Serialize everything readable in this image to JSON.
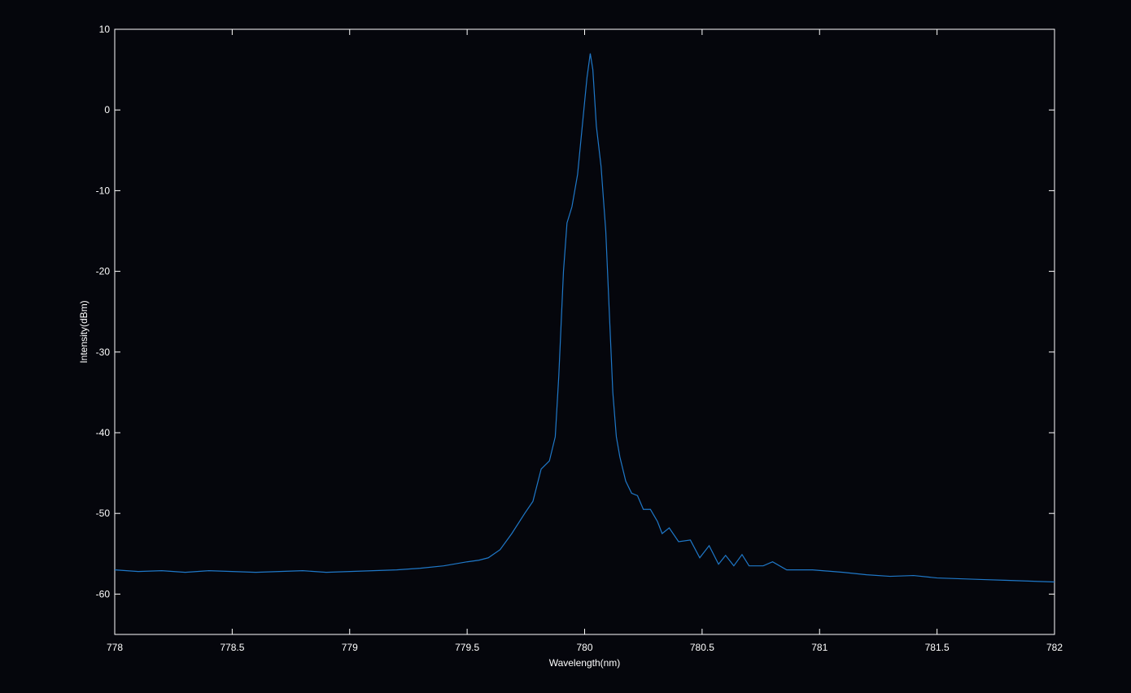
{
  "chart_data": {
    "type": "line",
    "x_label": "Wavelength(nm)",
    "y_label": "Intensity(dBm)",
    "color": "#1f78c8",
    "x": [
      778,
      778.1,
      778.2,
      778.3,
      778.4,
      778.5,
      778.6,
      778.7,
      778.8,
      778.9,
      779,
      779.1,
      779.2,
      779.3,
      779.4,
      779.5,
      779.55,
      779.59,
      779.64,
      779.69,
      779.745,
      779.78,
      779.815,
      779.85,
      779.875,
      779.89,
      779.91,
      779.925,
      779.946,
      779.97,
      779.99,
      780.01,
      780.024,
      780.035,
      780.05,
      780.07,
      780.09,
      780.105,
      780.12,
      780.135,
      780.15,
      780.175,
      780.2,
      780.225,
      780.25,
      780.28,
      780.31,
      780.33,
      780.36,
      780.4,
      780.45,
      780.49,
      780.53,
      780.57,
      780.6,
      780.635,
      780.67,
      780.7,
      780.76,
      780.8,
      780.86,
      780.97,
      781.1,
      781.2,
      781.3,
      781.4,
      781.5,
      781.6,
      781.7,
      781.8,
      781.9,
      782
    ],
    "values": [
      -57.0,
      -57.2,
      -57.1,
      -57.3,
      -57.1,
      -57.2,
      -57.3,
      -57.2,
      -57.1,
      -57.3,
      -57.2,
      -57.1,
      -57.0,
      -56.8,
      -56.5,
      -56.0,
      -55.8,
      -55.5,
      -54.5,
      -52.5,
      -50.0,
      -48.5,
      -44.5,
      -43.5,
      -40.5,
      -33.0,
      -20.0,
      -14.0,
      -12.0,
      -8.0,
      -2.0,
      4.0,
      7.0,
      5.0,
      -2.0,
      -7.0,
      -15.0,
      -25.0,
      -35.0,
      -40.5,
      -43.0,
      -46.0,
      -47.5,
      -47.8,
      -49.5,
      -49.5,
      -51.0,
      -52.5,
      -51.8,
      -53.5,
      -53.3,
      -55.5,
      -54.0,
      -56.3,
      -55.2,
      -56.5,
      -55.1,
      -56.5,
      -56.5,
      -56.0,
      -57.0,
      -57.0,
      -57.3,
      -57.6,
      -57.8,
      -57.7,
      -58.0,
      -58.1,
      -58.2,
      -58.3,
      -58.4,
      -58.5
    ],
    "xlim": [
      778,
      782
    ],
    "ylim": [
      -65,
      10
    ],
    "xticks": [
      778,
      778.5,
      779,
      779.5,
      780,
      780.5,
      781,
      781.5,
      782
    ],
    "yticks": [
      -60,
      -50,
      -40,
      -30,
      -20,
      -10,
      0,
      10
    ]
  }
}
